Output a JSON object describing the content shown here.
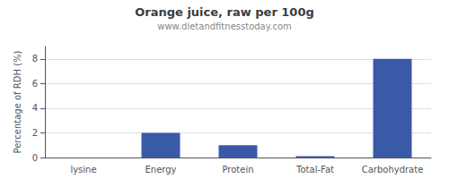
{
  "chart_data": {
    "type": "bar",
    "title": "Orange juice, raw per 100g",
    "subtitle": "www.dietandfitnesstoday.com",
    "categories": [
      "lysine",
      "Energy",
      "Protein",
      "Total-Fat",
      "Carbohydrate"
    ],
    "values": [
      0.0,
      2.0,
      1.0,
      0.1,
      8.0
    ],
    "color": "#3a5aa8",
    "ylabel": "Percentage of RDH (%)",
    "ylim": [
      0,
      9
    ],
    "yticks": [
      0,
      2,
      4,
      6,
      8
    ],
    "grid": true
  }
}
